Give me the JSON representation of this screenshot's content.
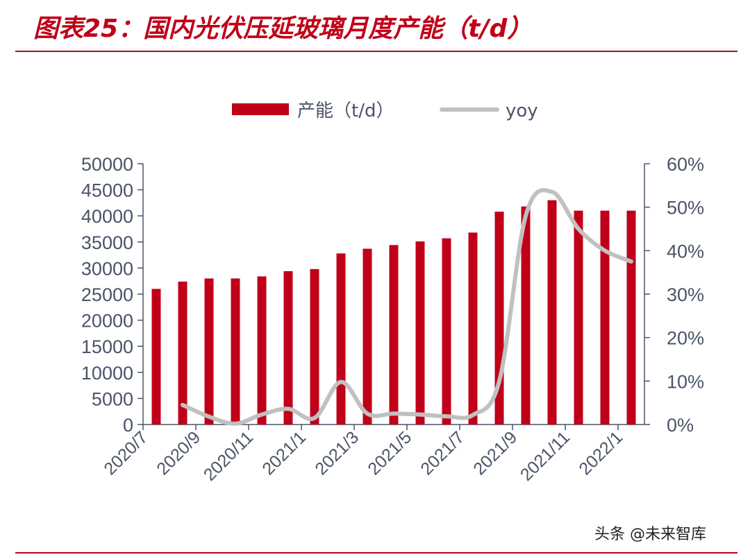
{
  "header": {
    "title": "图表25：国内光伏压延玻璃月度产能（t/d）"
  },
  "footer": {
    "watermark": "头条 @未来智库"
  },
  "colors": {
    "bar": "#c00018",
    "line": "#c0c0c0",
    "accent": "#c00018",
    "axis": "#4a5368"
  },
  "chart_data": {
    "type": "bar",
    "categories": [
      "2020/7",
      "2020/8",
      "2020/9",
      "2020/10",
      "2020/11",
      "2020/12",
      "2021/1",
      "2021/2",
      "2021/3",
      "2021/4",
      "2021/5",
      "2021/6",
      "2021/7",
      "2021/8",
      "2021/9",
      "2021/10",
      "2021/11",
      "2021/12",
      "2022/1"
    ],
    "x_tick_labels": [
      "2020/7",
      "2020/9",
      "2020/11",
      "2021/1",
      "2021/3",
      "2021/5",
      "2021/7",
      "2021/9",
      "2021/11",
      "2022/1"
    ],
    "series": [
      {
        "name": "产能（t/d）",
        "type": "bar",
        "axis": "left",
        "values": [
          26000,
          27400,
          28000,
          28000,
          28400,
          29400,
          29800,
          32800,
          33700,
          34400,
          35100,
          35700,
          36800,
          40800,
          41800,
          43000,
          41000,
          41000,
          41000
        ]
      },
      {
        "name": "yoy",
        "type": "line",
        "axis": "right",
        "values": [
          null,
          4.5,
          1.8,
          0.2,
          2.3,
          3.6,
          1.5,
          9.8,
          2.5,
          2.5,
          2.3,
          1.9,
          2.2,
          10.0,
          48.0,
          53.5,
          45.0,
          40.0,
          37.5
        ]
      }
    ],
    "y_left": {
      "min": 0,
      "max": 50000,
      "step": 5000,
      "ticks": [
        "0",
        "5000",
        "10000",
        "15000",
        "20000",
        "25000",
        "30000",
        "35000",
        "40000",
        "45000",
        "50000"
      ]
    },
    "y_right": {
      "min": 0,
      "max": 60,
      "step": 10,
      "ticks": [
        "0%",
        "10%",
        "20%",
        "30%",
        "40%",
        "50%",
        "60%"
      ]
    },
    "legend": {
      "placement": "top-center",
      "entries": [
        "产能（t/d）",
        "yoy"
      ]
    },
    "grid": false
  }
}
